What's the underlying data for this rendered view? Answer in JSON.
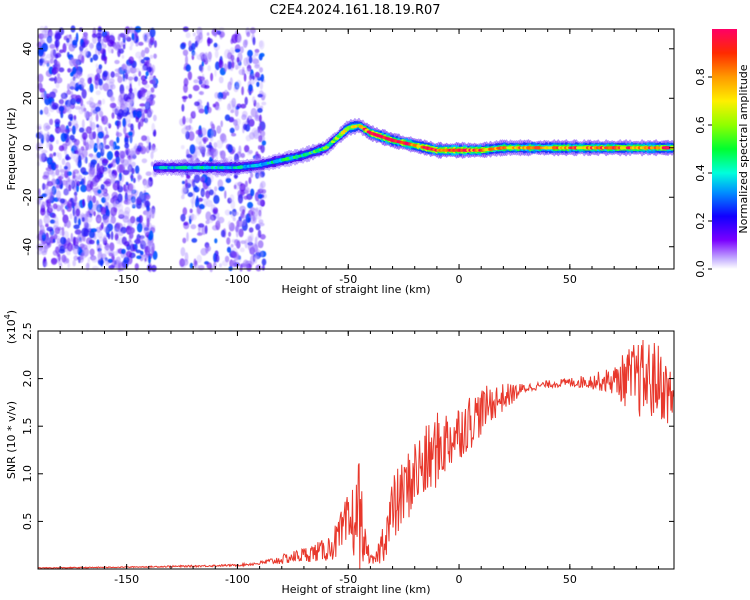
{
  "title": "C2E4.2024.161.18.19.R07",
  "chart_data": [
    {
      "type": "heatmap",
      "xlabel": "Height of straight line (km)",
      "ylabel": "Frequency (Hz)",
      "xlim": [
        -190,
        97
      ],
      "ylim": [
        -49,
        48
      ],
      "xticks": [
        -150,
        -100,
        -50,
        0,
        50
      ],
      "yticks": [
        -40,
        -20,
        0,
        20,
        40
      ],
      "colorbar": {
        "label": "Normalized spectral amplitude",
        "range": [
          0,
          1
        ],
        "ticks": [
          "0.0",
          "0.2",
          "0.4",
          "0.6",
          "0.8"
        ],
        "placement": "right",
        "colormap": [
          "#ffffff",
          "#a080ff",
          "#5000f0",
          "#0040ff",
          "#00c8ff",
          "#00ff40",
          "#c8ff00",
          "#ffd000",
          "#ff6000",
          "#ff0060"
        ]
      },
      "ridge": {
        "x": [
          -137,
          -120,
          -100,
          -90,
          -80,
          -70,
          -60,
          -55,
          -50,
          -45,
          -40,
          -30,
          -20,
          -15,
          -10,
          0,
          10,
          20,
          50,
          97
        ],
        "y": [
          -8,
          -8,
          -8,
          -7,
          -5,
          -3,
          0,
          4,
          8,
          9,
          6,
          3,
          1,
          0,
          -1,
          -1,
          -1,
          0,
          0,
          0
        ],
        "amplitude": [
          0.4,
          0.45,
          0.45,
          0.4,
          0.5,
          0.5,
          0.55,
          0.6,
          0.75,
          0.7,
          1.0,
          0.95,
          0.9,
          0.95,
          1.0,
          1.0,
          0.9,
          0.8,
          0.85,
          0.9
        ]
      },
      "noise_bands": [
        {
          "x": [
            -190,
            -137
          ],
          "density": "high"
        },
        {
          "x": [
            -125,
            -88
          ],
          "density": "medium"
        }
      ],
      "grid": false
    },
    {
      "type": "line",
      "xlabel": "Height of straight line (km)",
      "ylabel": "SNR (10 * v/v)",
      "y_multiplier": "(x10⁴)",
      "xlim": [
        -190,
        97
      ],
      "ylim": [
        0,
        2.5
      ],
      "xticks": [
        -150,
        -100,
        -50,
        0,
        50
      ],
      "yticks": [
        0.5,
        1.0,
        1.5,
        2.0,
        2.5
      ],
      "color": "#e8382c",
      "series": [
        {
          "x": [
            -190,
            -150,
            -120,
            -100,
            -90,
            -80,
            -70,
            -60,
            -55,
            -50,
            -46,
            -45,
            -43,
            -40,
            -38,
            -35,
            -32,
            -30,
            -25,
            -20,
            -15,
            -10,
            -5,
            0,
            5,
            10,
            15,
            20,
            25,
            30,
            35,
            40,
            50,
            60,
            70,
            75,
            80,
            85,
            90,
            97
          ],
          "values": [
            0.01,
            0.02,
            0.03,
            0.04,
            0.06,
            0.1,
            0.15,
            0.2,
            0.3,
            0.45,
            0.55,
            0.6,
            0.3,
            0.1,
            0.08,
            0.25,
            0.45,
            0.6,
            0.8,
            1.0,
            1.1,
            1.25,
            1.35,
            1.45,
            1.55,
            1.65,
            1.75,
            1.8,
            1.85,
            1.9,
            1.92,
            1.94,
            1.96,
            1.97,
            1.98,
            2.0,
            2.0,
            1.98,
            1.98,
            1.75
          ],
          "noise_amplitude": [
            0.005,
            0.005,
            0.01,
            0.01,
            0.02,
            0.05,
            0.08,
            0.12,
            0.2,
            0.35,
            0.45,
            0.7,
            0.2,
            0.05,
            0.05,
            0.2,
            0.3,
            0.4,
            0.35,
            0.4,
            0.4,
            0.4,
            0.35,
            0.3,
            0.3,
            0.25,
            0.2,
            0.15,
            0.1,
            0.05,
            0.04,
            0.04,
            0.05,
            0.08,
            0.15,
            0.3,
            0.4,
            0.45,
            0.4,
            0.3
          ]
        }
      ],
      "grid": false
    }
  ]
}
